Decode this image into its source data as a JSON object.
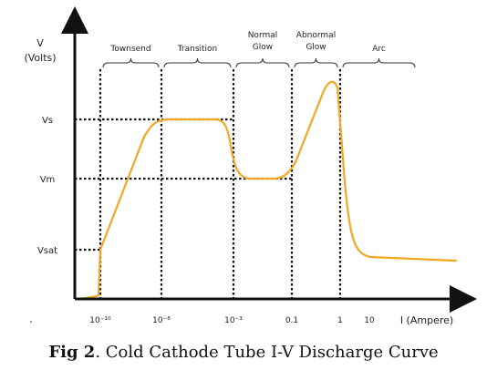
{
  "chart_data": {
    "type": "line",
    "ylabel_symbol": "V",
    "ylabel_unit": "(Volts)",
    "xlabel": "I (Ampere)",
    "x_tick_labels": [
      "10⁻¹⁰",
      "10⁻⁸",
      "10⁻³",
      "0.1",
      "1",
      "10"
    ],
    "y_levels": [
      {
        "key": "vs",
        "label": "Vs",
        "rel": 0.78
      },
      {
        "key": "vm",
        "label": "Vm",
        "rel": 0.51
      },
      {
        "key": "vsat",
        "label": "Vsat",
        "rel": 0.2
      }
    ],
    "regions": [
      {
        "label_lines": [
          "Townsend"
        ]
      },
      {
        "label_lines": [
          "Transition"
        ]
      },
      {
        "label_lines": [
          "Normal",
          "Glow"
        ]
      },
      {
        "label_lines": [
          "Abnormal",
          "Glow"
        ]
      },
      {
        "label_lines": [
          "Arc"
        ]
      }
    ],
    "curve_color": "#f5a623",
    "grid": false,
    "legend": "none"
  },
  "caption": {
    "bold": "Fig 2",
    "text": ". Cold Cathode Tube I-V Discharge Curve"
  }
}
